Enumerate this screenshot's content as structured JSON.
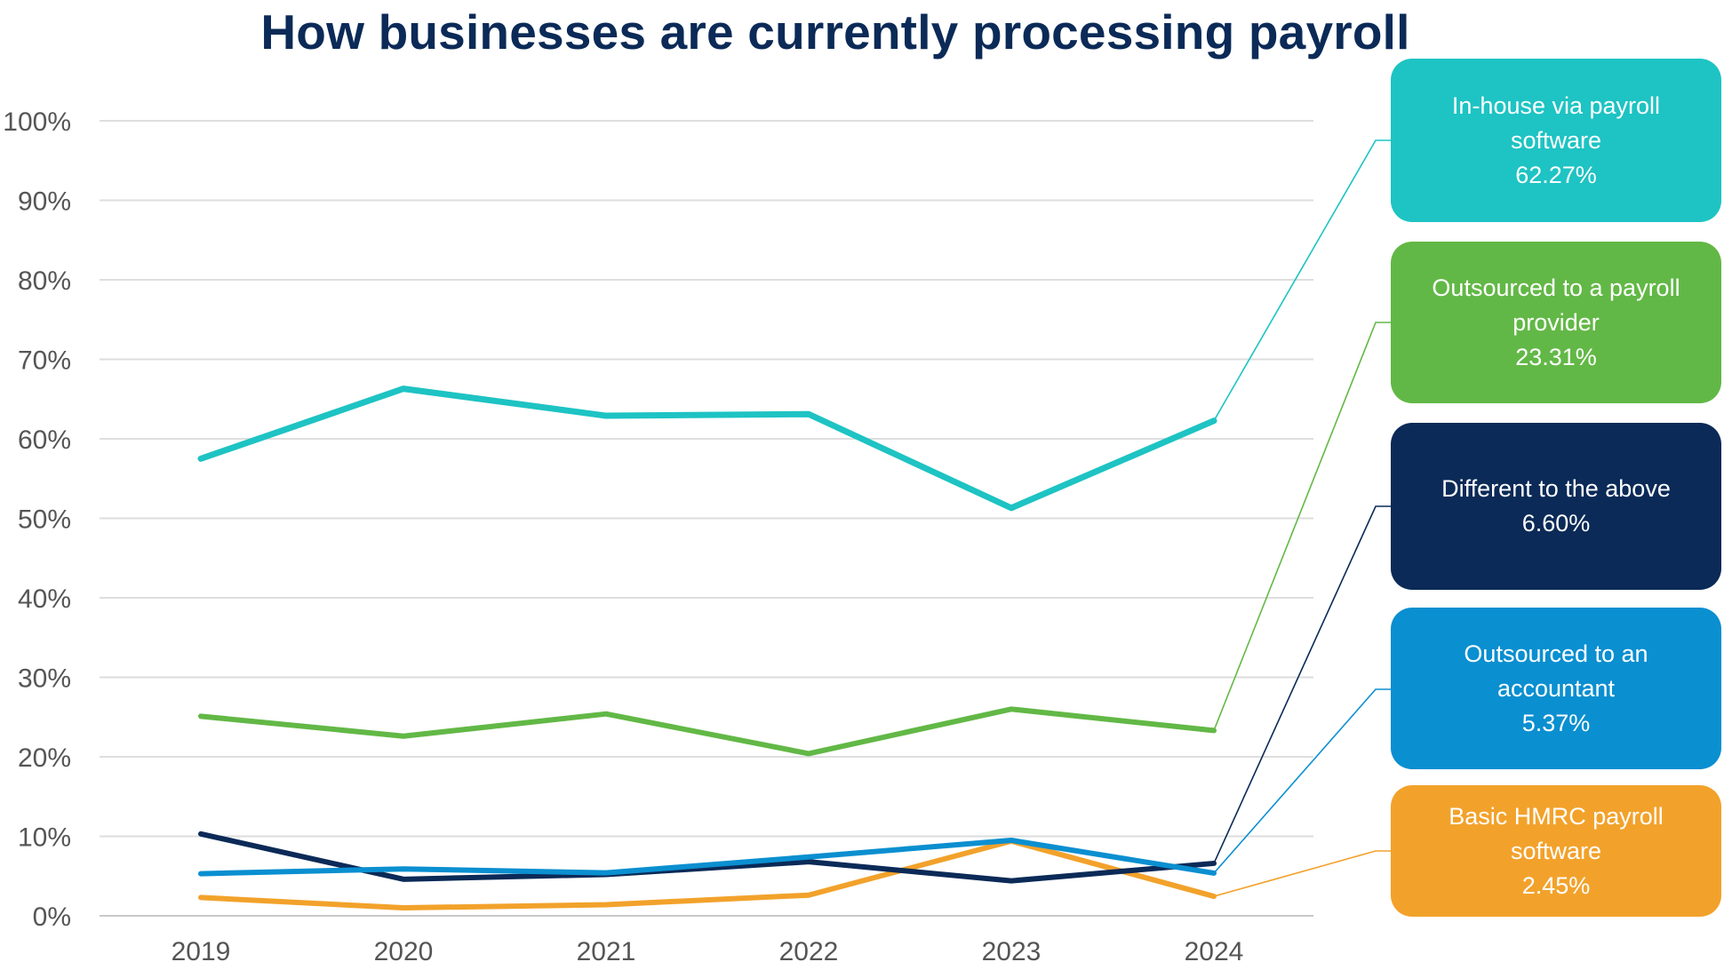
{
  "chart_data": {
    "type": "line",
    "title": "How businesses are currently processing payroll",
    "xlabel": "",
    "ylabel": "",
    "categories": [
      "2019",
      "2020",
      "2021",
      "2022",
      "2023",
      "2024"
    ],
    "ylim": [
      0,
      100
    ],
    "yticks": [
      0,
      10,
      20,
      30,
      40,
      50,
      60,
      70,
      80,
      90,
      100
    ],
    "ytick_labels": [
      "0%",
      "10%",
      "20%",
      "30%",
      "40%",
      "50%",
      "60%",
      "70%",
      "80%",
      "90%",
      "100%"
    ],
    "grid": "horizontal",
    "legend": "right-callouts",
    "series": [
      {
        "name": "In-house via payroll software",
        "label_value": "62.27%",
        "color": "#1ec3c3",
        "values": [
          57.5,
          66.3,
          62.9,
          63.1,
          51.3,
          62.27
        ]
      },
      {
        "name": "Outsourced to a payroll provider",
        "label_value": "23.31%",
        "color": "#62b846",
        "values": [
          25.1,
          22.6,
          25.4,
          20.4,
          26.0,
          23.31
        ]
      },
      {
        "name": "Different to the above",
        "label_value": "6.60%",
        "color": "#0b2a57",
        "values": [
          10.3,
          4.6,
          5.2,
          6.8,
          4.4,
          6.6
        ]
      },
      {
        "name": "Outsourced to an accountant",
        "label_value": "5.37%",
        "color": "#0a8fd0",
        "values": [
          5.3,
          5.9,
          5.4,
          7.4,
          9.5,
          5.37
        ]
      },
      {
        "name": "Basic HMRC payroll software",
        "label_value": "2.45%",
        "color": "#f2a22b",
        "values": [
          2.3,
          1.0,
          1.4,
          2.6,
          9.4,
          2.45
        ]
      }
    ]
  },
  "callouts": [
    {
      "line1": "In-house via payroll software",
      "value": "62.27%"
    },
    {
      "line1": "Outsourced to a payroll provider",
      "value": "23.31%"
    },
    {
      "line1": "Different to the above",
      "value": "6.60%"
    },
    {
      "line1": "Outsourced to an accountant",
      "value": "5.37%"
    },
    {
      "line1": "Basic HMRC payroll software",
      "value": "2.45%"
    }
  ]
}
